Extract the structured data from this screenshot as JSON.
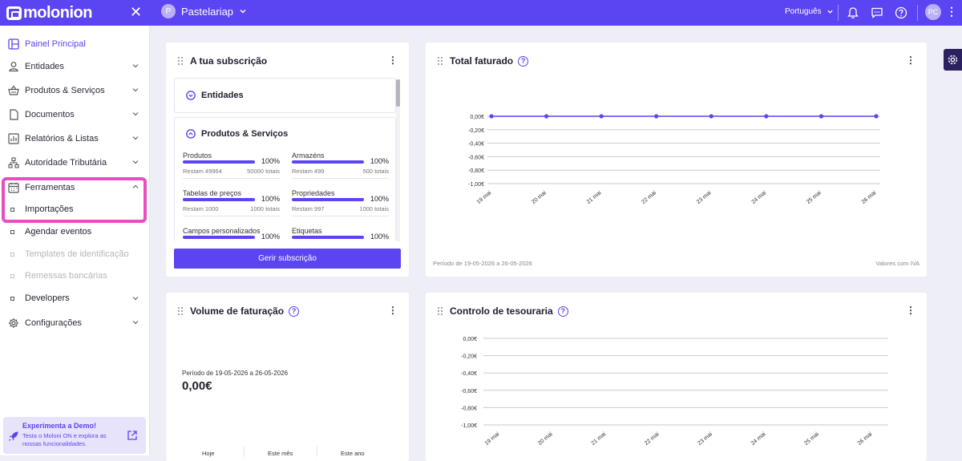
{
  "topbar": {
    "logo": "molonion",
    "company": "Pastelariap",
    "company_initial": "P",
    "language": "Português",
    "user_initials": "PC"
  },
  "sidebar": {
    "items": [
      {
        "label": "Painel Principal"
      },
      {
        "label": "Entidades"
      },
      {
        "label": "Produtos & Serviços"
      },
      {
        "label": "Documentos"
      },
      {
        "label": "Relatórios & Listas"
      },
      {
        "label": "Autoridade Tributária"
      },
      {
        "label": "Ferramentas"
      },
      {
        "label": "Configurações"
      }
    ],
    "sub_items": [
      {
        "label": "Importações"
      },
      {
        "label": "Agendar eventos"
      },
      {
        "label": "Templates de identificação"
      },
      {
        "label": "Remessas bancárias"
      },
      {
        "label": "Developers"
      }
    ],
    "demo": {
      "title": "Experimenta a Demo!",
      "desc": "Testa o Moloni ON e explora as nossas funcionalidades."
    }
  },
  "subscription": {
    "title": "A tua subscrição",
    "sec1": "Entidades",
    "sec2": "Produtos & Serviços",
    "quotas": [
      {
        "label": "Produtos",
        "pct": "100%",
        "rest": "Restam 49964",
        "total": "50000 totais"
      },
      {
        "label": "Armazéns",
        "pct": "100%",
        "rest": "Restam 499",
        "total": "500 totais"
      },
      {
        "label": "Tabelas de preços",
        "pct": "100%",
        "rest": "Restam 1000",
        "total": "1000 totais"
      },
      {
        "label": "Propriedades",
        "pct": "100%",
        "rest": "Restam 997",
        "total": "1000 totais"
      },
      {
        "label": "Campos personalizados",
        "pct": "100%"
      },
      {
        "label": "Etiquetas",
        "pct": "100%"
      }
    ],
    "button": "Gerir subscrição"
  },
  "total": {
    "title": "Total faturado",
    "period": "Período de 19-05-2026 a 26-05-2026",
    "note": "Valores com IVA"
  },
  "volume": {
    "title": "Volume de faturação",
    "period": "Período de 19-05-2026 a 26-05-2026",
    "total": "0,00€",
    "cols": [
      "Hoje",
      "Este mês",
      "Este ano"
    ]
  },
  "treasury": {
    "title": "Controlo de tesouraria"
  },
  "chart_data": [
    {
      "type": "line",
      "title": "Total faturado",
      "x": [
        "19 mai",
        "20 mai",
        "21 mai",
        "22 mai",
        "23 mai",
        "24 mai",
        "25 mai",
        "26 mai"
      ],
      "series": [
        {
          "values": [
            0,
            0,
            0,
            0,
            0,
            0,
            0,
            0
          ]
        }
      ],
      "y_ticks": [
        "0,00€",
        "-0,20€",
        "-0,40€",
        "-0,60€",
        "-0,80€",
        "-1,00€"
      ],
      "ylim": [
        -1,
        0
      ],
      "color": "#5b44f2"
    },
    {
      "type": "line",
      "title": "Controlo de tesouraria",
      "x": [
        "19 mai",
        "20 mai",
        "21 mai",
        "22 mai",
        "23 mai",
        "24 mai",
        "25 mai",
        "26 mai"
      ],
      "series": [],
      "y_ticks": [
        "0,00€",
        "-0,20€",
        "-0,40€",
        "-0,60€",
        "-0,80€",
        "-1,00€"
      ],
      "ylim": [
        -1,
        0
      ]
    }
  ]
}
